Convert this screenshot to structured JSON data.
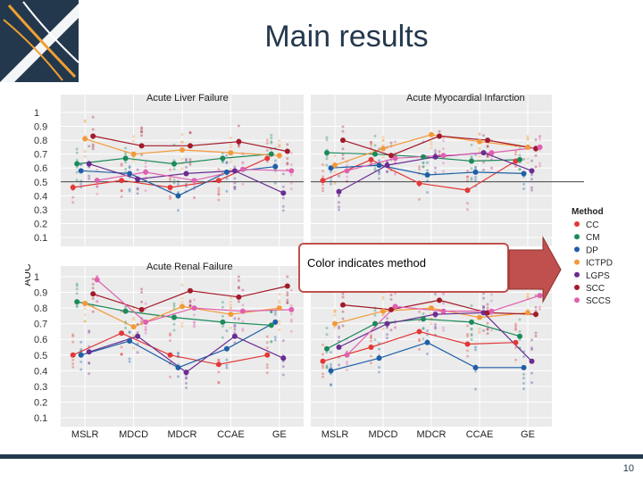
{
  "slide": {
    "title": "Main results",
    "page_number": "10",
    "callout": "Color indicates method"
  },
  "colors": {
    "title": "#24384d",
    "accent": "#c0504d"
  },
  "chart_data": {
    "type": "scatter",
    "ylabel": "AUC",
    "categories": [
      "MSLR",
      "MDCD",
      "MDCR",
      "CCAE",
      "GE"
    ],
    "yticks": [
      0.1,
      0.2,
      0.3,
      0.4,
      0.5,
      0.6,
      0.7,
      0.8,
      0.9,
      1
    ],
    "ytick_labels": [
      "0.1",
      "0.2",
      "0.3",
      "0.4",
      "0.5",
      "0.6",
      "0.7",
      "0.8",
      "0.9",
      "1"
    ],
    "reference_line": 0.5,
    "legend": {
      "title": "Method",
      "entries": [
        {
          "name": "CC",
          "color": "#e23838"
        },
        {
          "name": "CM",
          "color": "#1c8a5a"
        },
        {
          "name": "DP",
          "color": "#1f5fa6"
        },
        {
          "name": "ICTPD",
          "color": "#f29a3a"
        },
        {
          "name": "LGPS",
          "color": "#6a2c91"
        },
        {
          "name": "SCC",
          "color": "#a31a2a"
        },
        {
          "name": "SCCS",
          "color": "#e060b0"
        }
      ]
    },
    "panels": [
      {
        "title": "Acute Liver Failure",
        "series": [
          {
            "name": "CC",
            "values": [
              0.46,
              0.51,
              0.46,
              0.51,
              0.67
            ]
          },
          {
            "name": "CM",
            "values": [
              0.63,
              0.67,
              0.63,
              0.67,
              0.7
            ]
          },
          {
            "name": "DP",
            "values": [
              0.58,
              0.56,
              0.4,
              0.57,
              0.61
            ]
          },
          {
            "name": "ICTPD",
            "values": [
              0.81,
              0.7,
              0.73,
              0.71,
              0.69
            ]
          },
          {
            "name": "LGPS",
            "values": [
              0.63,
              0.52,
              0.56,
              0.58,
              0.42
            ]
          },
          {
            "name": "SCC",
            "values": [
              0.83,
              0.76,
              0.76,
              0.79,
              0.72
            ]
          },
          {
            "name": "SCCS",
            "values": [
              0.51,
              0.57,
              0.51,
              0.59,
              0.58
            ]
          }
        ]
      },
      {
        "title": "Acute Myocardial Infarction",
        "series": [
          {
            "name": "CC",
            "values": [
              0.51,
              0.66,
              0.49,
              0.44,
              0.65
            ]
          },
          {
            "name": "CM",
            "values": [
              0.71,
              0.7,
              0.68,
              0.65,
              0.66
            ]
          },
          {
            "name": "DP",
            "values": [
              0.6,
              0.62,
              0.55,
              0.57,
              0.56
            ]
          },
          {
            "name": "ICTPD",
            "values": [
              0.62,
              0.74,
              0.84,
              0.79,
              0.75
            ]
          },
          {
            "name": "LGPS",
            "values": [
              0.43,
              0.62,
              0.68,
              0.71,
              0.58
            ]
          },
          {
            "name": "SCC",
            "values": [
              0.8,
              0.69,
              0.83,
              0.8,
              0.74
            ]
          },
          {
            "name": "SCCS",
            "values": [
              0.58,
              0.67,
              0.69,
              0.71,
              0.75
            ]
          }
        ]
      },
      {
        "title": "Acute Renal Failure",
        "series": [
          {
            "name": "CC",
            "values": [
              0.5,
              0.64,
              0.5,
              0.44,
              0.5
            ]
          },
          {
            "name": "CM",
            "values": [
              0.84,
              0.78,
              0.74,
              0.71,
              0.69
            ]
          },
          {
            "name": "DP",
            "values": [
              0.5,
              0.59,
              0.42,
              0.54,
              0.71
            ]
          },
          {
            "name": "ICTPD",
            "values": [
              0.83,
              0.68,
              0.81,
              0.76,
              0.8
            ]
          },
          {
            "name": "LGPS",
            "values": [
              0.52,
              0.62,
              0.39,
              0.62,
              0.48
            ]
          },
          {
            "name": "SCC",
            "values": [
              0.89,
              0.79,
              0.91,
              0.87,
              0.94
            ]
          },
          {
            "name": "SCCS",
            "values": [
              0.98,
              0.71,
              0.8,
              0.78,
              0.79
            ]
          }
        ]
      },
      {
        "title": "",
        "series": [
          {
            "name": "CC",
            "values": [
              0.46,
              0.55,
              0.65,
              0.57,
              0.58
            ]
          },
          {
            "name": "CM",
            "values": [
              0.54,
              0.7,
              0.73,
              0.71,
              0.62
            ]
          },
          {
            "name": "DP",
            "values": [
              0.4,
              0.48,
              0.58,
              0.42,
              0.42
            ]
          },
          {
            "name": "ICTPD",
            "values": [
              0.7,
              0.78,
              0.8,
              0.74,
              0.77
            ]
          },
          {
            "name": "LGPS",
            "values": [
              0.55,
              0.7,
              0.76,
              0.77,
              0.46
            ]
          },
          {
            "name": "SCC",
            "values": [
              0.82,
              0.79,
              0.85,
              0.77,
              0.76
            ]
          },
          {
            "name": "SCCS",
            "values": [
              0.5,
              0.81,
              0.78,
              0.78,
              0.88
            ]
          }
        ]
      }
    ]
  }
}
